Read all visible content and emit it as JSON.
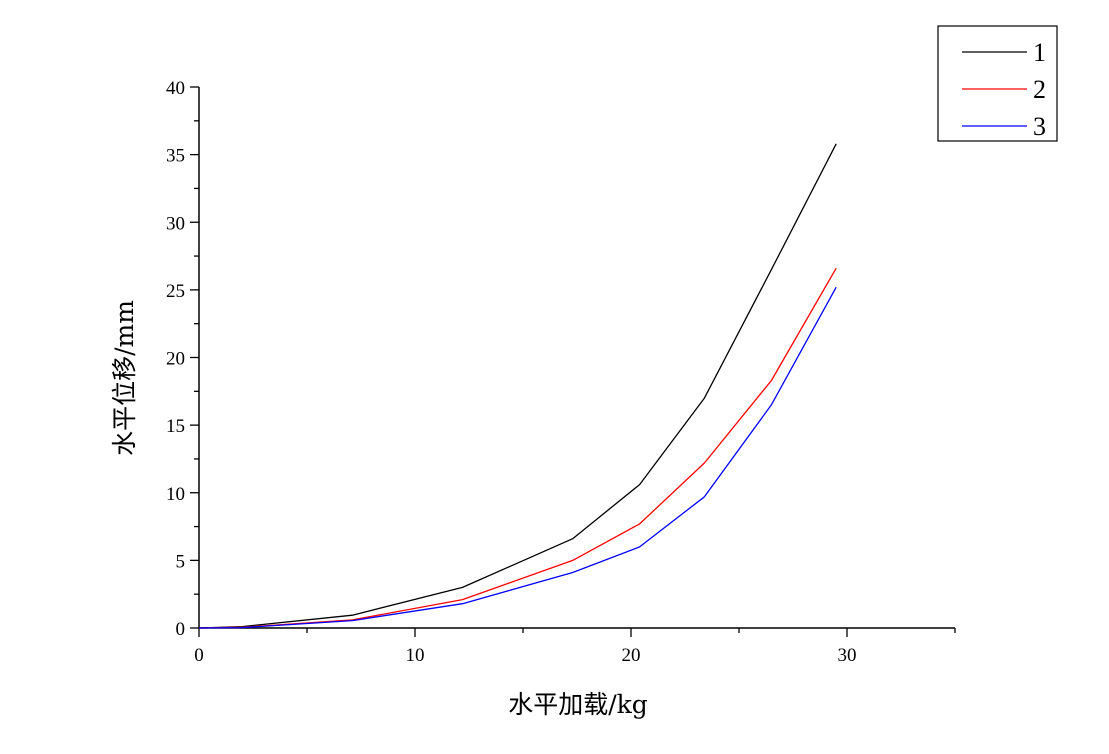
{
  "chart_data": {
    "type": "line",
    "xlabel": "水平加载/kg",
    "ylabel": "水平位移/mm",
    "xlim": [
      0,
      35
    ],
    "ylim": [
      0,
      40
    ],
    "x_ticks": [
      0,
      10,
      20,
      30
    ],
    "y_ticks": [
      0,
      5,
      10,
      15,
      20,
      25,
      30,
      35,
      40
    ],
    "grid": false,
    "legend_position": "top-right",
    "series": [
      {
        "name": "1",
        "color": "#000000",
        "x": [
          0,
          2,
          7.1,
          12.2,
          17.3,
          20.4,
          23.4,
          26.5,
          29.5
        ],
        "y": [
          0,
          0.1,
          0.95,
          3.0,
          6.6,
          10.6,
          17.0,
          26.5,
          35.8
        ]
      },
      {
        "name": "2",
        "color": "#ff0000",
        "x": [
          0,
          2,
          7.1,
          12.2,
          17.3,
          20.4,
          23.4,
          26.5,
          29.5
        ],
        "y": [
          0,
          0.05,
          0.6,
          2.1,
          5.0,
          7.7,
          12.2,
          18.3,
          26.6
        ]
      },
      {
        "name": "3",
        "color": "#0000ff",
        "x": [
          0,
          2,
          7.1,
          12.2,
          17.3,
          20.4,
          23.4,
          26.5,
          29.5
        ],
        "y": [
          0,
          0.03,
          0.55,
          1.8,
          4.1,
          6.0,
          9.7,
          16.5,
          25.2
        ]
      }
    ]
  }
}
